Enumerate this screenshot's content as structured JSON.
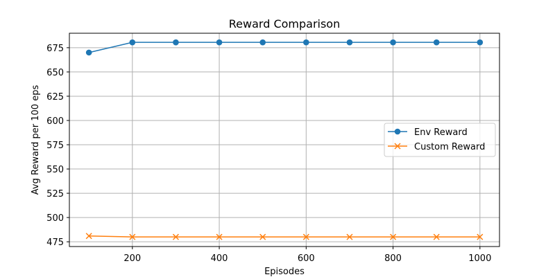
{
  "chart_data": {
    "type": "line",
    "title": "Reward Comparison",
    "xlabel": "Episodes",
    "ylabel": "Avg Reward per 100 eps",
    "x": [
      100,
      200,
      300,
      400,
      500,
      600,
      700,
      800,
      900,
      1000
    ],
    "xticks": [
      200,
      400,
      600,
      800,
      1000
    ],
    "yticks": [
      475,
      500,
      525,
      550,
      575,
      600,
      625,
      650,
      675
    ],
    "xlim": [
      55,
      1045
    ],
    "ylim": [
      470.1,
      689.9
    ],
    "grid": true,
    "legend_position": "center-right",
    "series": [
      {
        "name": "Env Reward",
        "color": "#1f77b4",
        "marker": "circle",
        "values": [
          670,
          680.5,
          680.5,
          680.5,
          680.5,
          680.5,
          680.5,
          680.5,
          680.5,
          680.5
        ]
      },
      {
        "name": "Custom Reward",
        "color": "#ff7f0e",
        "marker": "x",
        "values": [
          481,
          480,
          480,
          480,
          480,
          480,
          480,
          480,
          480,
          480
        ]
      }
    ]
  }
}
